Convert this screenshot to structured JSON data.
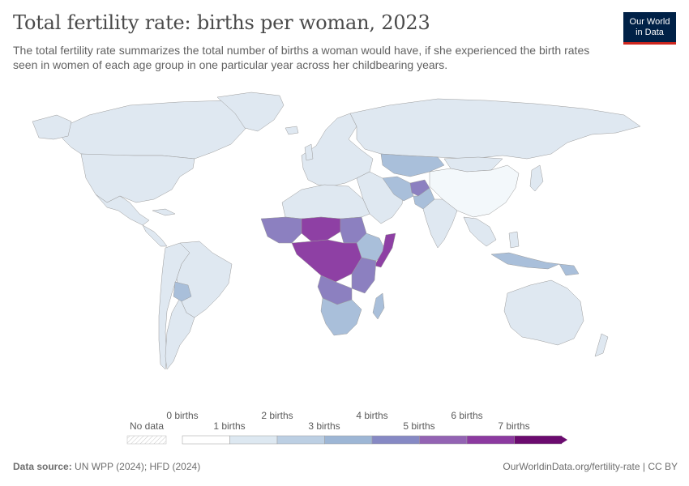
{
  "header": {
    "title": "Total fertility rate: births per woman, 2023",
    "subtitle": "The total fertility rate summarizes the total number of births a woman would have, if she experienced the birth rates seen in women of each age group in one particular year across her childbearing years."
  },
  "logo": {
    "line1": "Our World",
    "line2": "in Data"
  },
  "legend": {
    "no_data_label": "No data",
    "bin_labels_upper": [
      "0 births",
      "2 births",
      "4 births",
      "6 births"
    ],
    "bin_labels_lower": [
      "1 births",
      "3 births",
      "5 births",
      "7 births"
    ],
    "bin_colors": [
      "#ffffff",
      "#dde8f1",
      "#bccfe3",
      "#9db6d5",
      "#8689c4",
      "#9363b3",
      "#8c3aa0",
      "#6b0b6f"
    ]
  },
  "footer": {
    "source_label": "Data source:",
    "source_text": "UN WPP (2024); HFD (2024)",
    "url_text": "OurWorldinData.org/fertility-rate | CC BY"
  },
  "colors": {
    "ocean": "#ffffff",
    "land_low": "#dfe8f1",
    "land_china": "#f3f8fb",
    "land_mid": "#a9bfda",
    "land_high": "#8c80c0",
    "land_very_high": "#8e40a4",
    "border": "#9a9a9a"
  }
}
